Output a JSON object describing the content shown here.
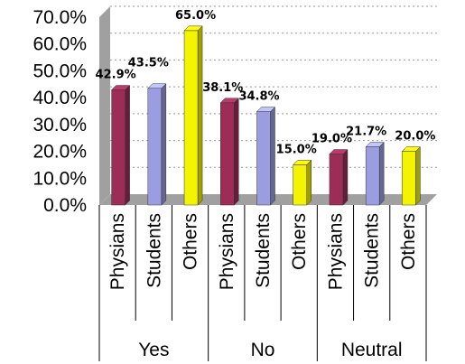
{
  "chart_data": {
    "type": "bar",
    "groups": [
      "Yes",
      "No",
      "Neutral"
    ],
    "categories": [
      "Physians",
      "Students",
      "Others"
    ],
    "series": [
      {
        "values": [
          42.9,
          38.1,
          19.0
        ],
        "color": "#9b2d57"
      },
      {
        "values": [
          43.5,
          34.8,
          21.7
        ],
        "color": "#9a9ee0"
      },
      {
        "values": [
          65.0,
          15.0,
          20.0
        ],
        "color": "#f4f400"
      }
    ],
    "data_labels": [
      [
        "42.9%",
        "43.5%",
        "65.0%"
      ],
      [
        "38.1%",
        "34.8%",
        "15.0%"
      ],
      [
        "19.0%",
        "21.7%",
        "20.0%"
      ]
    ],
    "yticks": [
      "0.0%",
      "10.0%",
      "20.0%",
      "30.0%",
      "40.0%",
      "50.0%",
      "60.0%",
      "70.0%"
    ],
    "ylim": [
      0,
      70
    ],
    "grid": true,
    "wall_color": "#a0a0a0"
  }
}
